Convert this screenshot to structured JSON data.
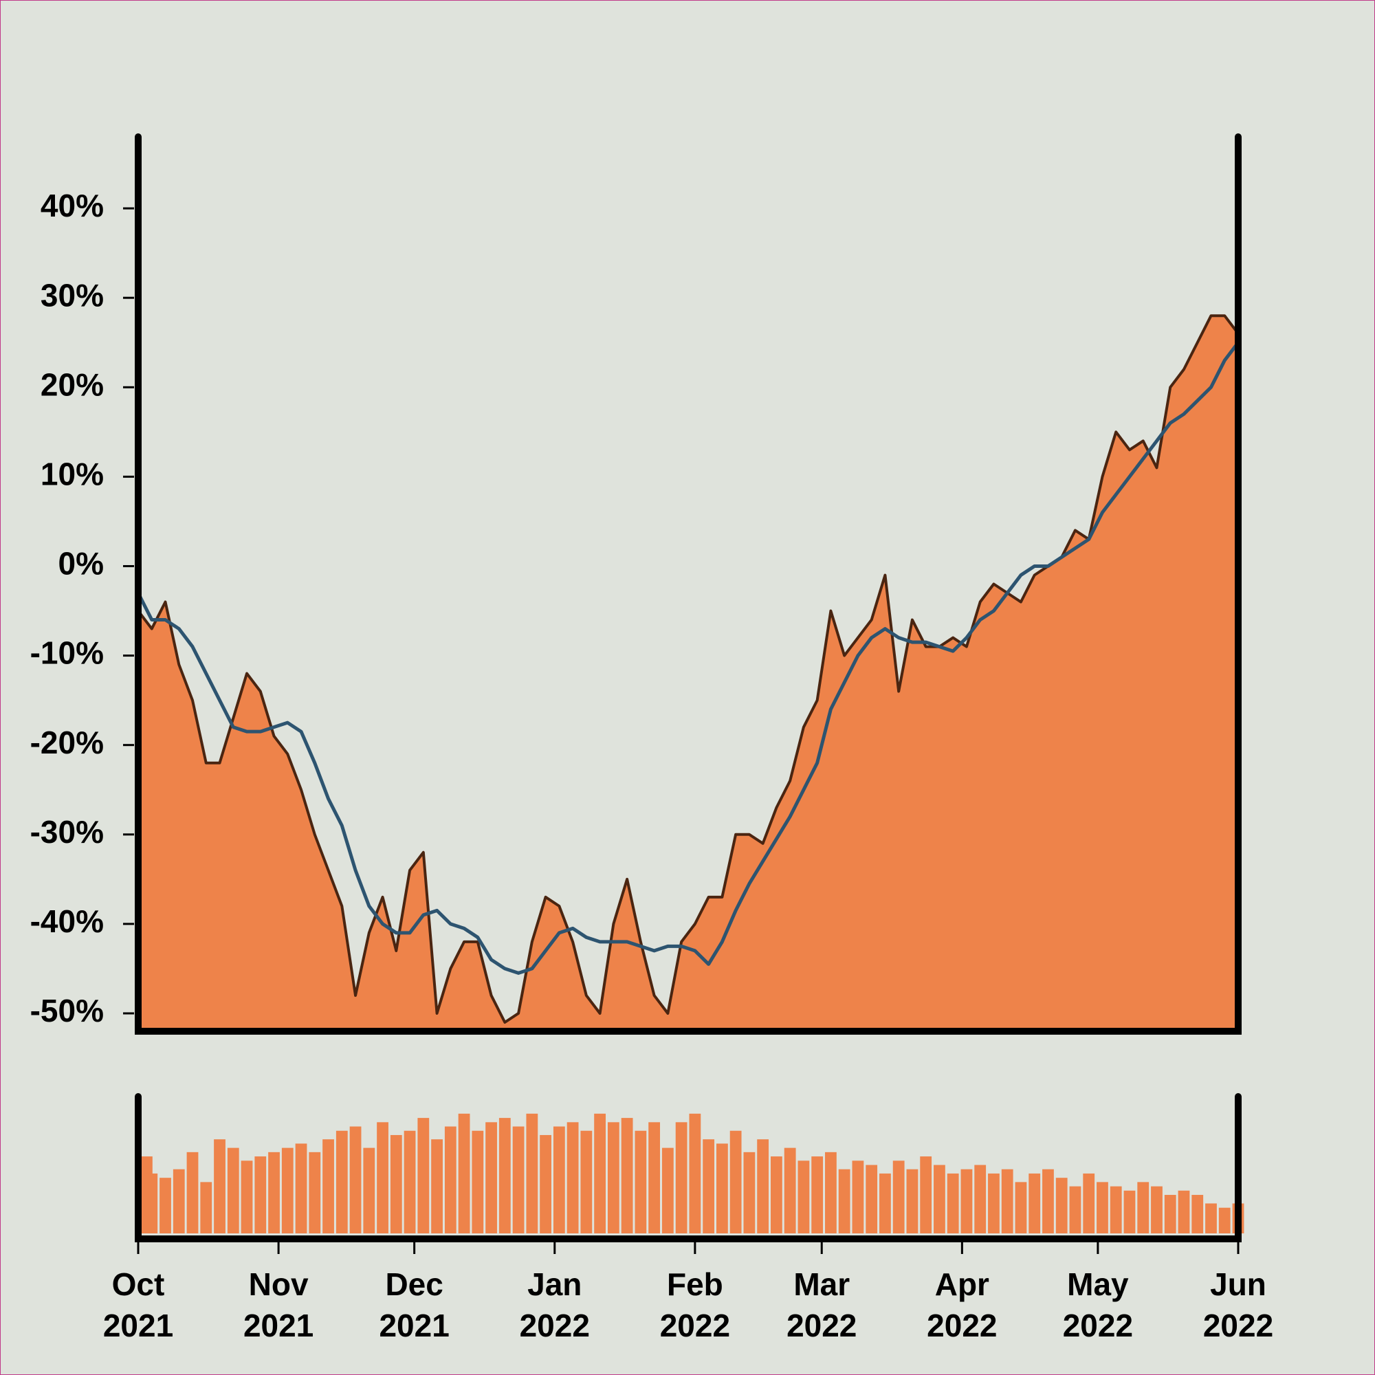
{
  "chart_data": [
    {
      "type": "area",
      "x": [
        0,
        3,
        6,
        9,
        12,
        15,
        18,
        21,
        24,
        27,
        30,
        33,
        36,
        39,
        42,
        45,
        48,
        51,
        54,
        57,
        60,
        63,
        66,
        69,
        72,
        75,
        78,
        81,
        84,
        87,
        90,
        93,
        96,
        99,
        102,
        105,
        108,
        111,
        114,
        117,
        120,
        123,
        126,
        129,
        132,
        135,
        138,
        141,
        144,
        147,
        150,
        153,
        156,
        159,
        162,
        165,
        168,
        171,
        174,
        177,
        180,
        183,
        186,
        189,
        192,
        195,
        198,
        201,
        204,
        207,
        210,
        213,
        216,
        219,
        222,
        225,
        228,
        231,
        234,
        237,
        240,
        243
      ],
      "xlim": [
        0,
        243
      ],
      "ylim": [
        -52,
        48
      ],
      "yticks": [
        {
          "value": 40,
          "label": "40%"
        },
        {
          "value": 30,
          "label": "30%"
        },
        {
          "value": 20,
          "label": "20%"
        },
        {
          "value": 10,
          "label": "10%"
        },
        {
          "value": 0,
          "label": "0%"
        },
        {
          "value": -10,
          "label": "-10%"
        },
        {
          "value": -20,
          "label": "-20%"
        },
        {
          "value": -30,
          "label": "-30%"
        },
        {
          "value": -40,
          "label": "-40%"
        },
        {
          "value": -50,
          "label": "-50%"
        }
      ],
      "series": [
        {
          "color": "#ee834a",
          "line_color": "#4a2511",
          "fill": true,
          "values": [
            -5,
            -7,
            -4,
            -11,
            -15,
            -22,
            -22,
            -17,
            -12,
            -14,
            -19,
            -21,
            -25,
            -30,
            -34,
            -38,
            -48,
            -41,
            -37,
            -43,
            -34,
            -32,
            -50,
            -45,
            -42,
            -42,
            -48,
            -51,
            -50,
            -42,
            -37,
            -38,
            -42,
            -48,
            -50,
            -40,
            -35,
            -42,
            -48,
            -50,
            -42,
            -40,
            -37,
            -37,
            -30,
            -30,
            -31,
            -27,
            -24,
            -18,
            -15,
            -5,
            -10,
            -8,
            -6,
            -1,
            -14,
            -6,
            -9,
            -9,
            -8,
            -9,
            -4,
            -2,
            -3,
            -4,
            -1,
            0,
            1,
            4,
            3,
            10,
            15,
            13,
            14,
            11,
            20,
            22,
            25,
            28,
            28,
            26
          ]
        },
        {
          "color": "#2d5470",
          "fill": false,
          "values": [
            -3,
            -6,
            -6,
            -7,
            -9,
            -12,
            -15,
            -18,
            -18.5,
            -18.5,
            -18,
            -17.5,
            -18.5,
            -22,
            -26,
            -29,
            -34,
            -38,
            -40,
            -41,
            -41,
            -39,
            -38.5,
            -40,
            -40.5,
            -41.5,
            -44,
            -45,
            -45.5,
            -45,
            -43,
            -41,
            -40.5,
            -41.5,
            -42,
            -42,
            -42,
            -42.5,
            -43,
            -42.5,
            -42.5,
            -43,
            -44.5,
            -42,
            -38.5,
            -35.5,
            -33,
            -30.5,
            -28,
            -25,
            -22,
            -16,
            -13,
            -10,
            -8,
            -7,
            -8,
            -8.5,
            -8.5,
            -9,
            -9.5,
            -8,
            -6,
            -5,
            -3,
            -1,
            0,
            0,
            1,
            2,
            3,
            6,
            8,
            10,
            12,
            14,
            16,
            17,
            18.5,
            20,
            23,
            25
          ]
        }
      ]
    },
    {
      "type": "bar",
      "xlim": [
        0,
        243
      ],
      "xticks": [
        {
          "value": 0,
          "label": "Oct 2021"
        },
        {
          "value": 31,
          "label": "Nov 2021"
        },
        {
          "value": 61,
          "label": "Dec 2021"
        },
        {
          "value": 92,
          "label": "Jan 2022"
        },
        {
          "value": 123,
          "label": "Feb 2022"
        },
        {
          "value": 151,
          "label": "Mar 2022"
        },
        {
          "value": 182,
          "label": "Apr 2022"
        },
        {
          "value": 212,
          "label": "May 2022"
        },
        {
          "value": 243,
          "label": "Jun 2022"
        }
      ],
      "ylim": [
        0,
        160
      ],
      "color": "#ee834a",
      "values": [
        90,
        70,
        65,
        75,
        95,
        60,
        110,
        100,
        85,
        90,
        95,
        100,
        105,
        95,
        110,
        120,
        125,
        100,
        130,
        115,
        120,
        135,
        110,
        125,
        140,
        120,
        130,
        135,
        125,
        140,
        115,
        125,
        130,
        120,
        140,
        130,
        135,
        120,
        130,
        100,
        130,
        140,
        110,
        105,
        120,
        95,
        110,
        90,
        100,
        85,
        90,
        95,
        75,
        85,
        80,
        70,
        85,
        75,
        90,
        80,
        70,
        75,
        80,
        70,
        75,
        60,
        70,
        75,
        65,
        55,
        70,
        60,
        55,
        50,
        60,
        55,
        45,
        50,
        45,
        35,
        30,
        35
      ]
    }
  ]
}
